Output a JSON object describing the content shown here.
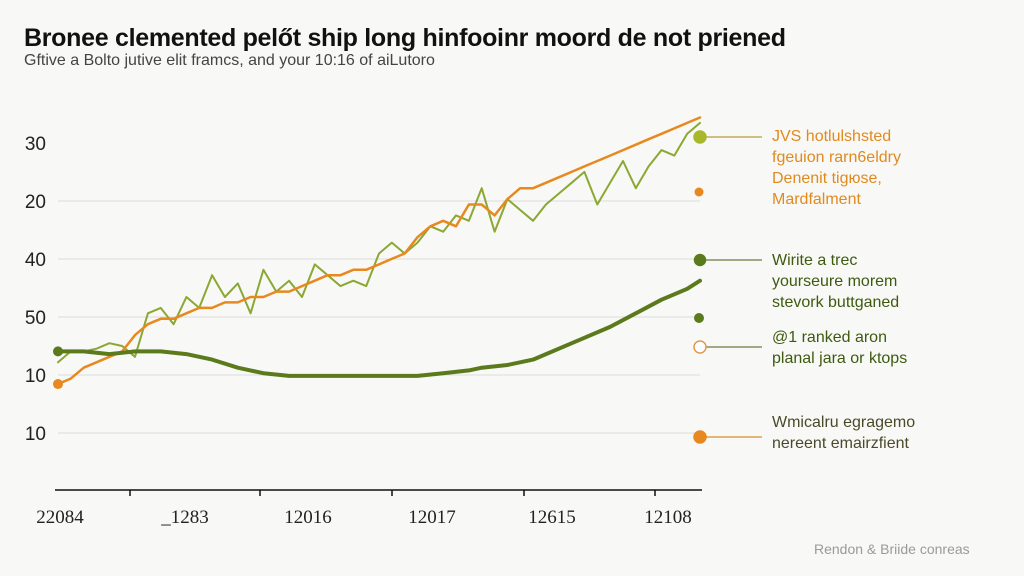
{
  "header": {
    "title": "Bronee clemented pelőt ship long hinfooinr moord de not priened",
    "subtitle": "Gftive a Bolto jutive elit framcs, and your 10:16 of aiLutoro"
  },
  "credit": "Rendon & Briide conreas",
  "colors": {
    "light_green": "#8aa832",
    "orange": "#e8891f",
    "dark_green": "#5b7a1c",
    "lime_dot": "#a8b82a",
    "grid": "#dcdcdc",
    "axis": "#111111"
  },
  "chart_data": {
    "type": "line",
    "title": "Bronee clemented pelőt ship long hinfooinr moord de not priened",
    "subtitle": "Gftive a Bolto jutive elit framcs, and your 10:16 of aiLutoro",
    "xlabel": "",
    "ylabel": "",
    "grid": true,
    "legend": "right (inline annotations)",
    "x_tick_labels": [
      "22084",
      "_1283",
      "12016",
      "12017",
      "12615",
      "12108"
    ],
    "y_tick_labels": [
      "30",
      "20",
      "40",
      "50",
      "10",
      "10"
    ],
    "y_positions_note": "tick labels are printed top-to-bottom; chart plotted in a 0-100 normalized scale",
    "ylim": [
      0,
      100
    ],
    "xlim": [
      0,
      100
    ],
    "series": [
      {
        "name": "light-green",
        "color": "#8aa832",
        "x": [
          0,
          2,
          4,
          6,
          8,
          10,
          12,
          14,
          16,
          18,
          20,
          22,
          24,
          26,
          28,
          30,
          32,
          34,
          36,
          38,
          40,
          42,
          44,
          46,
          48,
          50,
          52,
          54,
          56,
          58,
          60,
          62,
          64,
          66,
          68,
          70,
          72,
          74,
          76,
          78,
          80,
          82,
          84,
          86,
          88,
          90,
          92,
          94,
          96,
          98,
          100
        ],
        "values": [
          26,
          30,
          30,
          31,
          33,
          32,
          28,
          44,
          46,
          40,
          50,
          46,
          58,
          50,
          55,
          44,
          60,
          52,
          56,
          50,
          62,
          58,
          54,
          56,
          54,
          66,
          70,
          66,
          70,
          76,
          74,
          80,
          78,
          90,
          74,
          86,
          82,
          78,
          84,
          88,
          92,
          96,
          84,
          92,
          100,
          90,
          98,
          104,
          102,
          110,
          114
        ]
      },
      {
        "name": "orange",
        "color": "#e8891f",
        "x": [
          0,
          2,
          4,
          6,
          8,
          10,
          12,
          14,
          16,
          18,
          20,
          22,
          24,
          26,
          28,
          30,
          32,
          34,
          36,
          38,
          40,
          42,
          44,
          46,
          48,
          50,
          52,
          54,
          56,
          58,
          60,
          62,
          64,
          66,
          68,
          70,
          72,
          74,
          76,
          78,
          80,
          82,
          84,
          86,
          88,
          90,
          92,
          94,
          96,
          98,
          100
        ],
        "values": [
          18,
          20,
          24,
          26,
          28,
          30,
          36,
          40,
          42,
          42,
          44,
          46,
          46,
          48,
          48,
          50,
          50,
          52,
          52,
          54,
          56,
          58,
          58,
          60,
          60,
          62,
          64,
          66,
          72,
          76,
          78,
          76,
          84,
          84,
          80,
          86,
          90,
          90,
          92,
          94,
          96,
          98,
          100,
          102,
          104,
          106,
          108,
          110,
          112,
          114,
          116
        ]
      },
      {
        "name": "dark-green",
        "color": "#5b7a1c",
        "x": [
          0,
          4,
          8,
          12,
          16,
          20,
          24,
          28,
          32,
          36,
          40,
          44,
          48,
          52,
          56,
          60,
          64,
          66,
          70,
          74,
          78,
          82,
          86,
          90,
          94,
          96,
          98,
          100
        ],
        "values": [
          30,
          30,
          29,
          30,
          30,
          29,
          27,
          24,
          22,
          21,
          21,
          21,
          21,
          21,
          21,
          22,
          23,
          24,
          25,
          27,
          31,
          35,
          39,
          44,
          49,
          51,
          53,
          56
        ]
      }
    ],
    "annotations": [
      {
        "text": [
          "JVS hotlulshsted",
          "fgeuion rarn6eldry",
          "Denenit tigюse,",
          "Mardfalment"
        ],
        "color": "#e08a1f",
        "marker": "filled lime dot"
      },
      {
        "text": [
          "Wirite a trec",
          "yourseure morem",
          "stevork buttganed"
        ],
        "color": "#3e5a10",
        "marker": "filled dark green dot"
      },
      {
        "text": [
          "@1 ranked aron",
          "planal jara or ktops"
        ],
        "color": "#3e5a10",
        "marker": "hollow orange circle"
      },
      {
        "text": [
          "Wmicalru egragemo",
          "nereent emairzfient"
        ],
        "color": "#4a4a2a",
        "marker": "filled orange dot"
      }
    ]
  }
}
